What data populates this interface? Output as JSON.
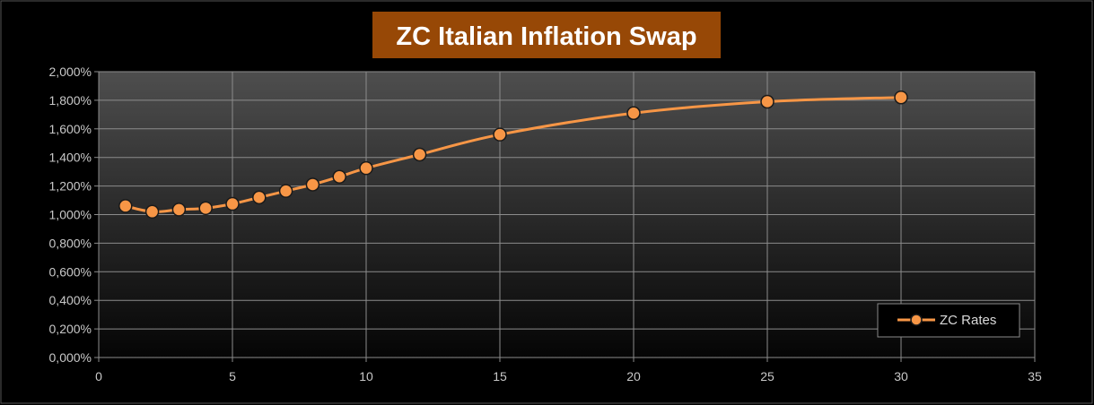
{
  "chart_data": {
    "type": "line",
    "title": "ZC Italian Inflation Swap",
    "xlabel": "",
    "ylabel": "",
    "xlim": [
      0,
      35
    ],
    "ylim": [
      0,
      2
    ],
    "x_ticks": [
      0,
      5,
      10,
      15,
      20,
      25,
      30,
      35
    ],
    "x_tick_labels": [
      "0",
      "5",
      "10",
      "15",
      "20",
      "25",
      "30",
      "35"
    ],
    "y_ticks": [
      0,
      0.2,
      0.4,
      0.6,
      0.8,
      1.0,
      1.2,
      1.4,
      1.6,
      1.8,
      2.0
    ],
    "y_tick_labels": [
      "0,000%",
      "0,200%",
      "0,400%",
      "0,600%",
      "0,800%",
      "1,000%",
      "1,200%",
      "1,400%",
      "1,600%",
      "1,800%",
      "2,000%"
    ],
    "grid": true,
    "legend_position": "bottom-right",
    "series": [
      {
        "name": "ZC Rates",
        "color": "#f79646",
        "x": [
          1,
          2,
          3,
          4,
          5,
          6,
          7,
          8,
          9,
          10,
          12,
          15,
          20,
          25,
          30
        ],
        "y": [
          1.06,
          1.02,
          1.035,
          1.045,
          1.075,
          1.12,
          1.165,
          1.21,
          1.265,
          1.325,
          1.42,
          1.56,
          1.71,
          1.79,
          1.82
        ]
      }
    ],
    "colors": {
      "background": "#000000",
      "title_bg": "#974806",
      "grid": "#8c8c8c",
      "marker_edge": "#1a1a1a"
    }
  }
}
